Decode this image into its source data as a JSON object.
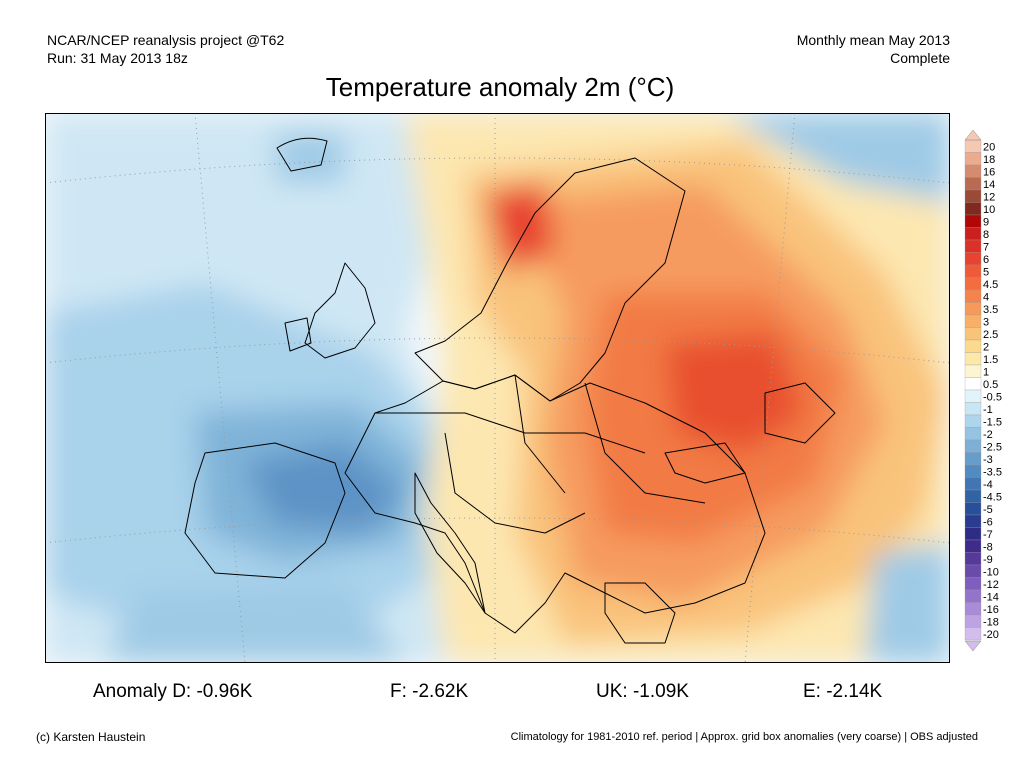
{
  "header": {
    "source": "NCAR/NCEP reanalysis project @T62",
    "run": "Run: 31 May 2013 18z",
    "period": "Monthly mean May 2013",
    "status": "Complete"
  },
  "title": "Temperature anomaly 2m (°C)",
  "legend": {
    "labels": [
      "20",
      "18",
      "16",
      "14",
      "12",
      "10",
      "9",
      "8",
      "7",
      "6",
      "5",
      "4.5",
      "4",
      "3.5",
      "3",
      "2.5",
      "2",
      "1.5",
      "1",
      "0.5",
      "-0.5",
      "-1",
      "-1.5",
      "-2",
      "-2.5",
      "-3",
      "-3.5",
      "-4",
      "-4.5",
      "-5",
      "-6",
      "-7",
      "-8",
      "-9",
      "-10",
      "-12",
      "-14",
      "-16",
      "-18",
      "-20"
    ],
    "colors": [
      "#f5c8b4",
      "#ecab8d",
      "#d48b6e",
      "#b86a52",
      "#9c4a38",
      "#802a1f",
      "#b00808",
      "#cc1f1f",
      "#dc3128",
      "#e8432f",
      "#ef5a39",
      "#f26e41",
      "#f5834c",
      "#f69a5c",
      "#f8b068",
      "#f9c47a",
      "#fbd98f",
      "#fce9aa",
      "#fdf4d2",
      "#ffffff",
      "#e3f3fb",
      "#c8e6f4",
      "#aed5eb",
      "#95c3e1",
      "#7eb0d6",
      "#679dcb",
      "#538abf",
      "#4176b3",
      "#3263a6",
      "#284f99",
      "#2a3c8f",
      "#2d2d85",
      "#3f2b8c",
      "#553a9c",
      "#6a4bac",
      "#7f5fbd",
      "#9474cb",
      "#a98bd8",
      "#bea3e3",
      "#d2bded"
    ]
  },
  "stats": {
    "d": "Anomaly D: -0.96K",
    "f": "F: -2.62K",
    "uk": "UK: -1.09K",
    "e": "E: -2.14K"
  },
  "footer": {
    "credit": "(c) Karsten Haustein",
    "notes": "Climatology for 1981-2010 ref. period | Approx. grid box anomalies (very coarse) | OBS adjusted"
  }
}
